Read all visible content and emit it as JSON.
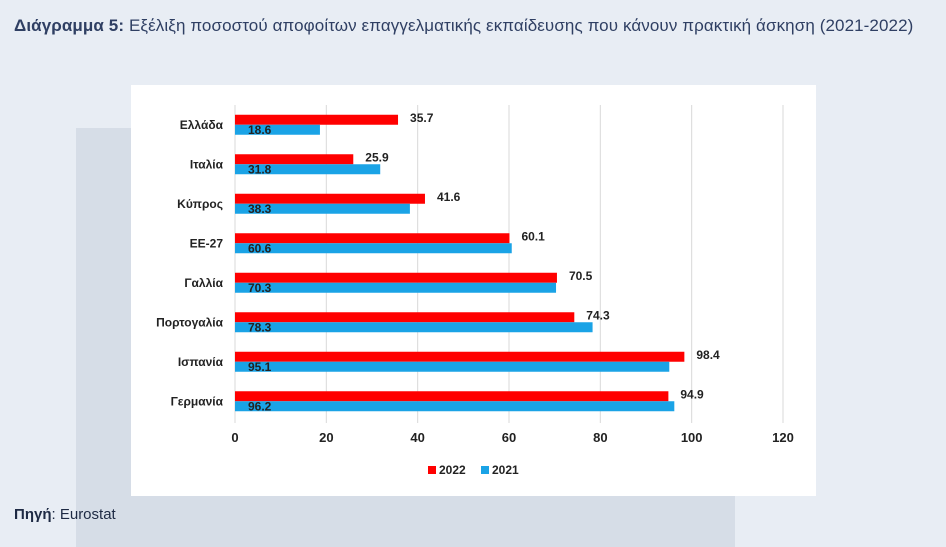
{
  "heading": {
    "lead": "Διάγραμμα 5:",
    "text": "Εξέλιξη ποσοστού αποφοίτων επαγγελματικής εκπαίδευσης που κάνουν πρακτική άσκηση (2021-2022)"
  },
  "source": {
    "label": "Πηγή",
    "separator": ":",
    "value": "Eurostat"
  },
  "chart_data": {
    "type": "bar",
    "orientation": "horizontal",
    "categories": [
      "Ελλάδα",
      "Ιταλία",
      "Κύπρος",
      "ΕΕ-27",
      "Γαλλία",
      "Πορτογαλία",
      "Ισπανία",
      "Γερμανία"
    ],
    "series": [
      {
        "name": "2022",
        "color": "#ff0000",
        "values": [
          35.7,
          25.9,
          41.6,
          60.1,
          70.5,
          74.3,
          98.4,
          94.9
        ]
      },
      {
        "name": "2021",
        "color": "#1aa3e6",
        "values": [
          18.6,
          31.8,
          38.3,
          60.6,
          70.3,
          78.3,
          95.1,
          96.2
        ]
      }
    ],
    "xlim": [
      0,
      120
    ],
    "xticks": [
      0,
      20,
      40,
      60,
      80,
      100,
      120
    ],
    "grid": true,
    "legend_position": "bottom-center"
  }
}
